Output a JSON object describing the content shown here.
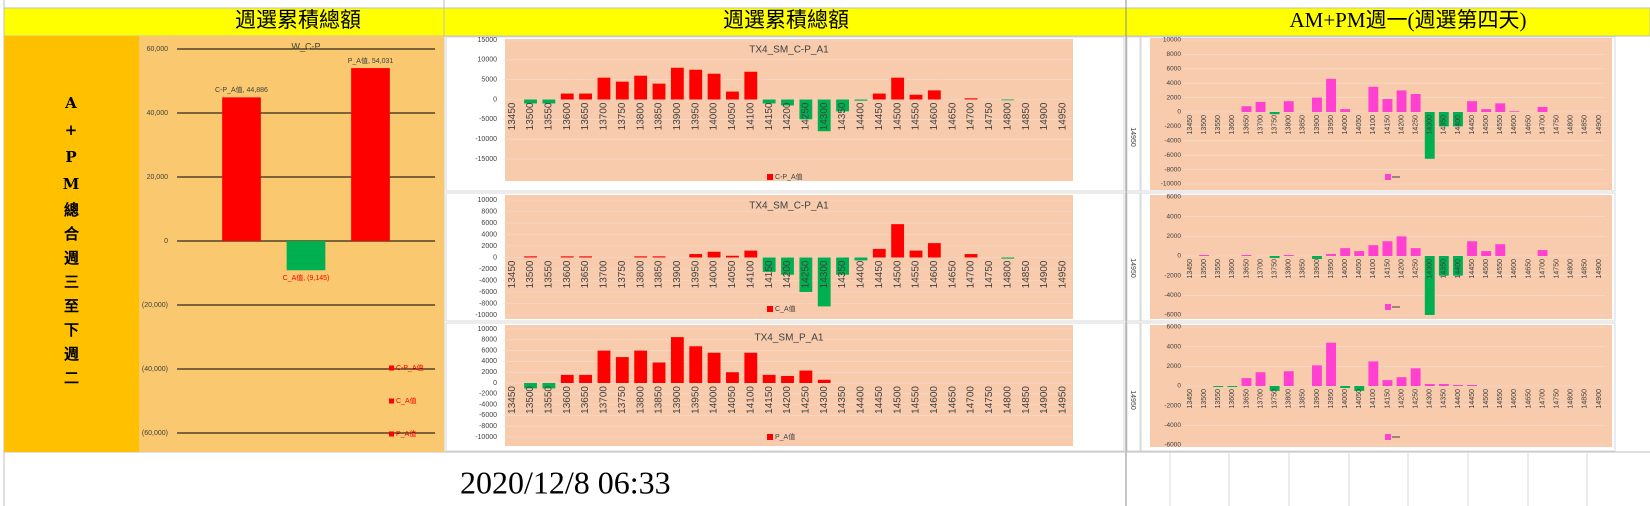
{
  "headers": [
    "週選累積總額",
    "週選累積總額",
    "AM+PM週一(週選第四天)"
  ],
  "side_label": "A+PM總合週三至下週二",
  "column_label": "14950",
  "timestamp": "2020/12/8 06:33",
  "chart_data": [
    {
      "type": "bar",
      "title": "W_C-P",
      "categories": [
        "C-P_A值",
        "C_A值",
        "P_A值"
      ],
      "values": [
        44886,
        -9145,
        54031
      ],
      "value_labels": [
        "C-P_A值, 44,886",
        "C_A值, (9,145)",
        "P_A值, 54,031"
      ],
      "colors": [
        "#ff0000",
        "#00b050",
        "#ff0000"
      ],
      "ylim": [
        -60000,
        60000
      ],
      "yticks": [
        {
          "value": 60000,
          "label": "60,000"
        },
        {
          "value": 40000,
          "label": "40,000"
        },
        {
          "value": 20000,
          "label": "20,000"
        },
        0,
        {
          "value": -20000,
          "label": "(20,000)"
        },
        {
          "value": -40000,
          "label": "(40,000)"
        },
        {
          "value": -60000,
          "label": "(60,000)"
        }
      ],
      "grid": true,
      "legend": "right"
    },
    {
      "type": "bar",
      "title": "TX4_SM_C-P_A1",
      "categories": [
        "13450",
        "13500",
        "13550",
        "13600",
        "13650",
        "13700",
        "13750",
        "13800",
        "13850",
        "13900",
        "13950",
        "14000",
        "14050",
        "14100",
        "14150",
        "14200",
        "14250",
        "14300",
        "14350",
        "14400",
        "14450",
        "14500",
        "14550",
        "14600",
        "14650",
        "14700",
        "14750",
        "14800",
        "14850",
        "14900",
        "14950"
      ],
      "series": [
        {
          "name": "C-P_A值",
          "color": "#ff0000",
          "values": [
            0,
            -1000,
            -1000,
            1500,
            1500,
            5500,
            4500,
            6000,
            4000,
            8000,
            7500,
            6500,
            2000,
            7000,
            -1000,
            -1500,
            -5000,
            -8000,
            -3000,
            -300,
            1500,
            5500,
            1200,
            2300,
            0,
            300,
            0,
            -200,
            0,
            0,
            0
          ]
        }
      ],
      "negative_color": "#00b050",
      "ylim": [
        -15000,
        15000
      ],
      "yticks": [
        15000,
        10000,
        5000,
        0,
        -5000,
        -10000,
        -15000
      ],
      "grid": true,
      "legend": "bottom"
    },
    {
      "type": "bar",
      "title": "TX4_SM_C-P_A1",
      "categories": [
        "13450",
        "13500",
        "13550",
        "13600",
        "13650",
        "13700",
        "13750",
        "13800",
        "13850",
        "13900",
        "13950",
        "14000",
        "14050",
        "14100",
        "14150",
        "14200",
        "14250",
        "14300",
        "14350",
        "14400",
        "14450",
        "14500",
        "14550",
        "14600",
        "14650",
        "14700",
        "14750",
        "14800",
        "14850",
        "14900",
        "14950"
      ],
      "series": [
        {
          "name": "C_A值",
          "color": "#ff0000",
          "values": [
            0,
            200,
            0,
            200,
            200,
            0,
            0,
            200,
            200,
            0,
            600,
            1000,
            300,
            1200,
            -2500,
            -3000,
            -6000,
            -8500,
            -3000,
            -500,
            1500,
            5800,
            1200,
            2500,
            0,
            600,
            0,
            -200,
            0,
            0,
            0
          ]
        }
      ],
      "negative_color": "#00b050",
      "ylim": [
        -10000,
        10000
      ],
      "yticks": [
        10000,
        8000,
        6000,
        4000,
        2000,
        0,
        -2000,
        -4000,
        -6000,
        -8000,
        -10000
      ],
      "grid": true,
      "legend": "bottom"
    },
    {
      "type": "bar",
      "title": "TX4_SM_P_A1",
      "categories": [
        "13450",
        "13500",
        "13550",
        "13600",
        "13650",
        "13700",
        "13750",
        "13800",
        "13850",
        "13900",
        "13950",
        "14000",
        "14050",
        "14100",
        "14150",
        "14200",
        "14250",
        "14300",
        "14350",
        "14400",
        "14450",
        "14500",
        "14550",
        "14600",
        "14650",
        "14700",
        "14750",
        "14800",
        "14850",
        "14900",
        "14950"
      ],
      "series": [
        {
          "name": "P_A值",
          "color": "#ff0000",
          "values": [
            0,
            -1000,
            -1000,
            1500,
            1500,
            6000,
            4800,
            6000,
            3800,
            8500,
            6800,
            5600,
            2000,
            5600,
            1500,
            1300,
            2300,
            600,
            0,
            0,
            0,
            0,
            0,
            0,
            0,
            0,
            0,
            0,
            0,
            0,
            0
          ]
        }
      ],
      "negative_color": "#00b050",
      "ylim": [
        -10000,
        10000
      ],
      "yticks": [
        10000,
        8000,
        6000,
        4000,
        2000,
        0,
        -2000,
        -4000,
        -6000,
        -8000,
        -10000
      ],
      "grid": true,
      "legend": "bottom"
    },
    {
      "type": "bar",
      "categories": [
        "13450",
        "13500",
        "13550",
        "13600",
        "13650",
        "13700",
        "13750",
        "13800",
        "13850",
        "13900",
        "13950",
        "14000",
        "14050",
        "14100",
        "14150",
        "14200",
        "14250",
        "14300",
        "14350",
        "14400",
        "14450",
        "14500",
        "14550",
        "14600",
        "14650",
        "14700",
        "14750",
        "14800",
        "14850",
        "14900"
      ],
      "values": [
        0,
        0,
        0,
        0,
        800,
        1400,
        -300,
        1500,
        0,
        2000,
        4600,
        400,
        0,
        3500,
        1800,
        3000,
        2500,
        -6500,
        -2000,
        -2000,
        1500,
        400,
        1200,
        100,
        0,
        700,
        0,
        0,
        0,
        0
      ],
      "color": "#ff40d0",
      "negative_color": "#00b050",
      "ylim": [
        -10000,
        10000
      ],
      "yticks": [
        10000,
        8000,
        6000,
        4000,
        2000,
        0,
        -2000,
        -4000,
        -6000,
        -8000,
        -10000
      ],
      "grid": true,
      "legend": "bottom"
    },
    {
      "type": "bar",
      "categories": [
        "13450",
        "13500",
        "13550",
        "13600",
        "13650",
        "13700",
        "13750",
        "13800",
        "13850",
        "13900",
        "13950",
        "14000",
        "14050",
        "14100",
        "14150",
        "14200",
        "14250",
        "14300",
        "14350",
        "14400",
        "14450",
        "14500",
        "14550",
        "14600",
        "14650",
        "14700",
        "14750",
        "14800",
        "14850",
        "14900"
      ],
      "values": [
        0,
        100,
        0,
        0,
        100,
        0,
        -200,
        100,
        0,
        -300,
        200,
        800,
        500,
        1100,
        1500,
        2000,
        800,
        -6000,
        -2000,
        -2000,
        1500,
        500,
        1200,
        0,
        0,
        600,
        0,
        0,
        0,
        0
      ],
      "color": "#ff40d0",
      "negative_color": "#00b050",
      "ylim": [
        -6000,
        6000
      ],
      "yticks": [
        6000,
        4000,
        2000,
        0,
        -2000,
        -4000,
        -6000
      ],
      "grid": true,
      "legend": "bottom"
    },
    {
      "type": "bar",
      "categories": [
        "13450",
        "13500",
        "13550",
        "13600",
        "13650",
        "13700",
        "13750",
        "13800",
        "13850",
        "13900",
        "13950",
        "14000",
        "14050",
        "14100",
        "14150",
        "14200",
        "14250",
        "14300",
        "14350",
        "14400",
        "14450",
        "14500",
        "14550",
        "14600",
        "14650",
        "14700",
        "14750",
        "14800",
        "14850",
        "14900"
      ],
      "values": [
        0,
        0,
        -100,
        -100,
        800,
        1400,
        -500,
        1500,
        0,
        2100,
        4400,
        -200,
        -500,
        2500,
        600,
        900,
        1800,
        200,
        200,
        100,
        100,
        0,
        0,
        0,
        0,
        0,
        0,
        0,
        0,
        0
      ],
      "color": "#ff40d0",
      "negative_color": "#00b050",
      "ylim": [
        -6000,
        6000
      ],
      "yticks": [
        6000,
        4000,
        2000,
        0,
        -2000,
        -4000,
        -6000
      ],
      "grid": true,
      "legend": "bottom"
    }
  ]
}
